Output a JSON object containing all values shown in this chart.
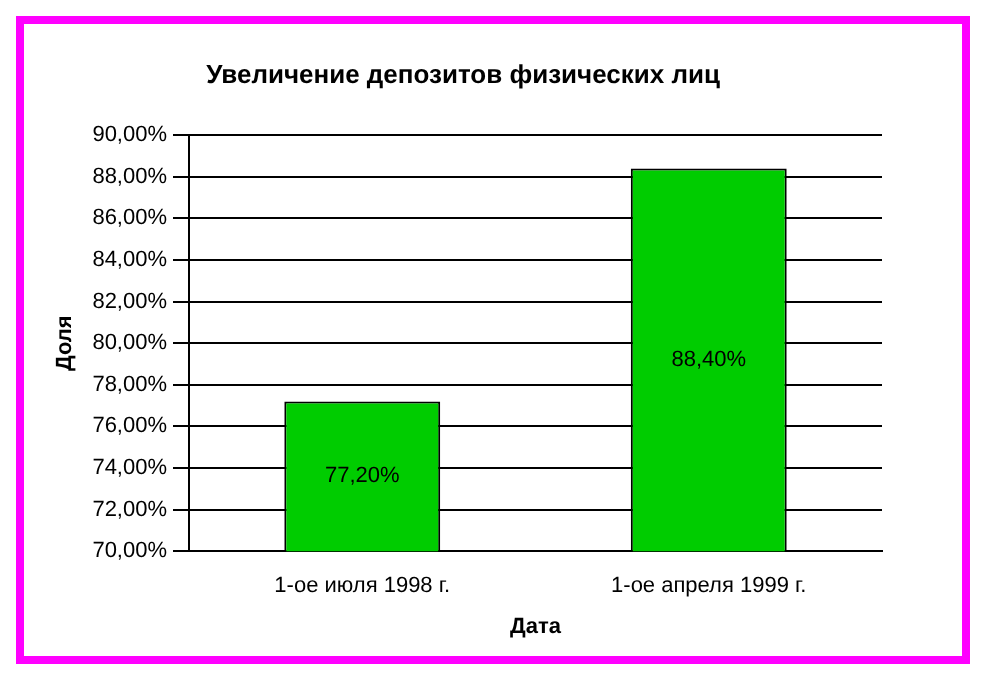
{
  "chart_data": {
    "type": "bar",
    "title": "Увеличение депозитов физических лиц",
    "xlabel": "Дата",
    "ylabel": "Доля",
    "categories": [
      "1-ое июля 1998 г.",
      "1-ое апреля 1999 г."
    ],
    "values": [
      77.2,
      88.4
    ],
    "value_labels": [
      "77,20%",
      "88,40%"
    ],
    "color": "#00cc00",
    "ylim": [
      70,
      90
    ],
    "yticks": [
      {
        "value": 70,
        "label": "70,00%"
      },
      {
        "value": 72,
        "label": "72,00%"
      },
      {
        "value": 74,
        "label": "74,00%"
      },
      {
        "value": 76,
        "label": "76,00%"
      },
      {
        "value": 78,
        "label": "78,00%"
      },
      {
        "value": 80,
        "label": "80,00%"
      },
      {
        "value": 82,
        "label": "82,00%"
      },
      {
        "value": 84,
        "label": "84,00%"
      },
      {
        "value": 86,
        "label": "86,00%"
      },
      {
        "value": 88,
        "label": "88,00%"
      },
      {
        "value": 90,
        "label": "90,00%"
      }
    ],
    "grid": "y",
    "legend": false
  }
}
